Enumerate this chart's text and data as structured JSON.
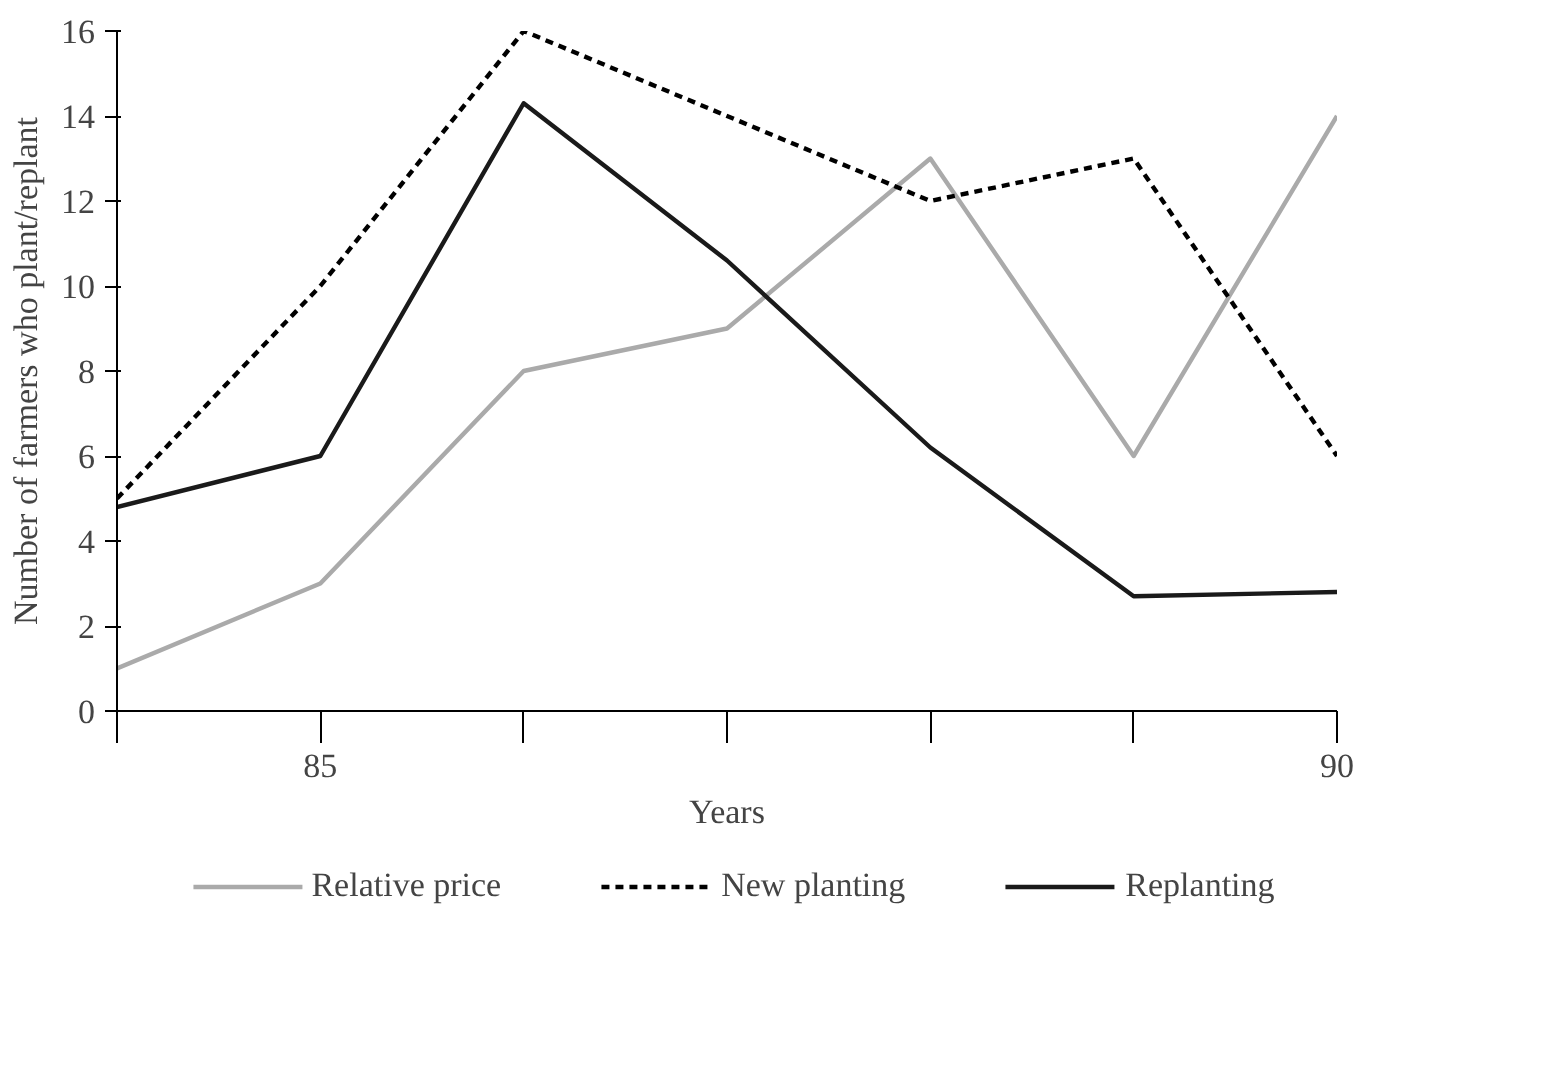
{
  "chart_data": {
    "type": "line",
    "xlabel": "Years",
    "ylabel": "Number of farmers who plant/replant",
    "x": [
      84,
      85,
      86,
      87,
      88,
      89,
      90
    ],
    "xlim": [
      84,
      90
    ],
    "xticks": [
      {
        "value": 84,
        "label": null
      },
      85,
      {
        "value": 86,
        "label": null
      },
      {
        "value": 87,
        "label": null
      },
      {
        "value": 88,
        "label": null
      },
      {
        "value": 89,
        "label": null
      },
      90
    ],
    "ylim": [
      0,
      16
    ],
    "yticks": [
      0,
      2,
      4,
      6,
      8,
      10,
      12,
      14,
      16
    ],
    "series": [
      {
        "name": "Relative price",
        "color": "#aaaaaa",
        "line_style": "solid",
        "values": [
          1,
          3,
          8,
          9,
          13,
          6,
          14
        ]
      },
      {
        "name": "New planting",
        "color": "#000000",
        "line_style": "dashed",
        "values": [
          5,
          10,
          16,
          14,
          12,
          13,
          6
        ]
      },
      {
        "name": "Replanting",
        "color": "#1a1a1a",
        "line_style": "solid",
        "values": [
          4.8,
          6,
          14.3,
          10.6,
          6.2,
          2.7,
          2.8
        ]
      }
    ],
    "grid": false,
    "legend": "bottom",
    "marker": "none"
  }
}
